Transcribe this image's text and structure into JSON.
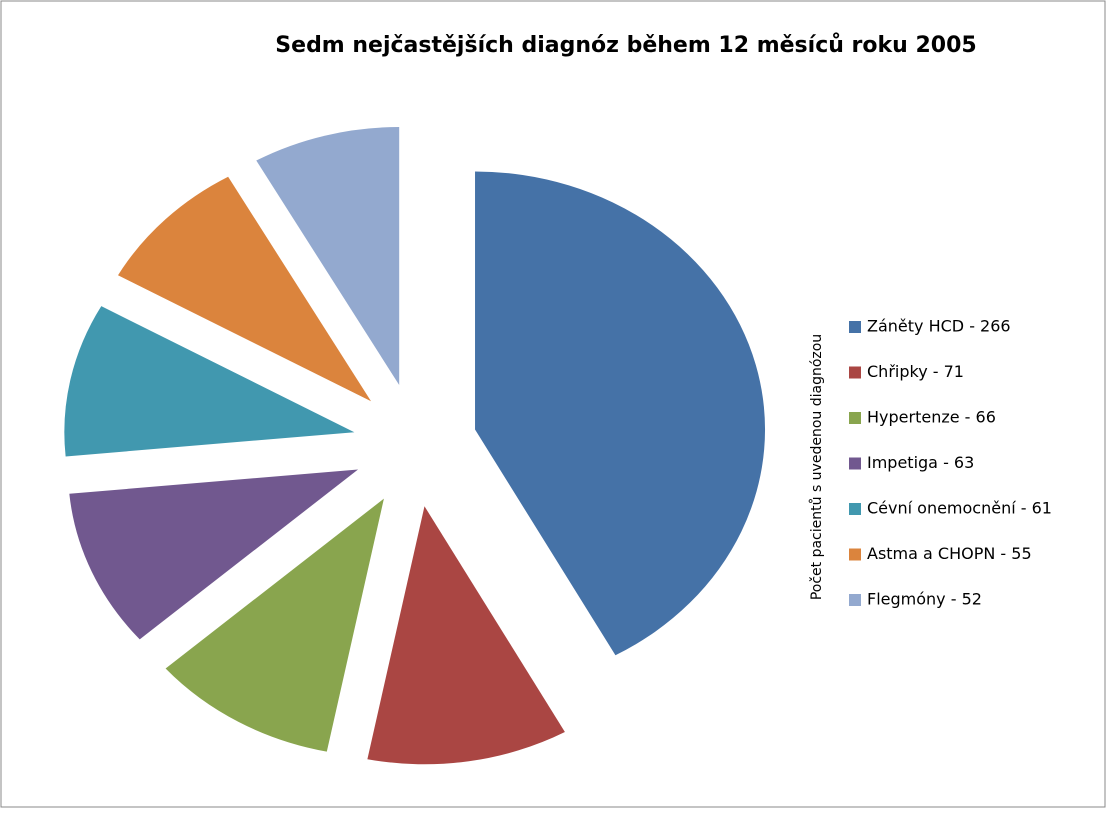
{
  "chart_data": {
    "type": "pie",
    "title": "Sedm nejčastějších diagnóz během 12 měsíců roku 2005",
    "axis_label": "Počet pacientů s uvedenou diagnózou",
    "categories": [
      "Záněty HCD - 266",
      "Chřipky - 71",
      "Hypertenze - 66",
      "Impetiga - 63",
      "Cévní onemocnění - 61",
      "Astma a CHOPN - 55",
      "Flegmóny - 52"
    ],
    "values": [
      266,
      71,
      66,
      63,
      61,
      55,
      52
    ],
    "colors": [
      "#4572a7",
      "#aa4643",
      "#89a54e",
      "#71588f",
      "#4198af",
      "#db843d",
      "#93a9cf"
    ],
    "legend": "right"
  }
}
